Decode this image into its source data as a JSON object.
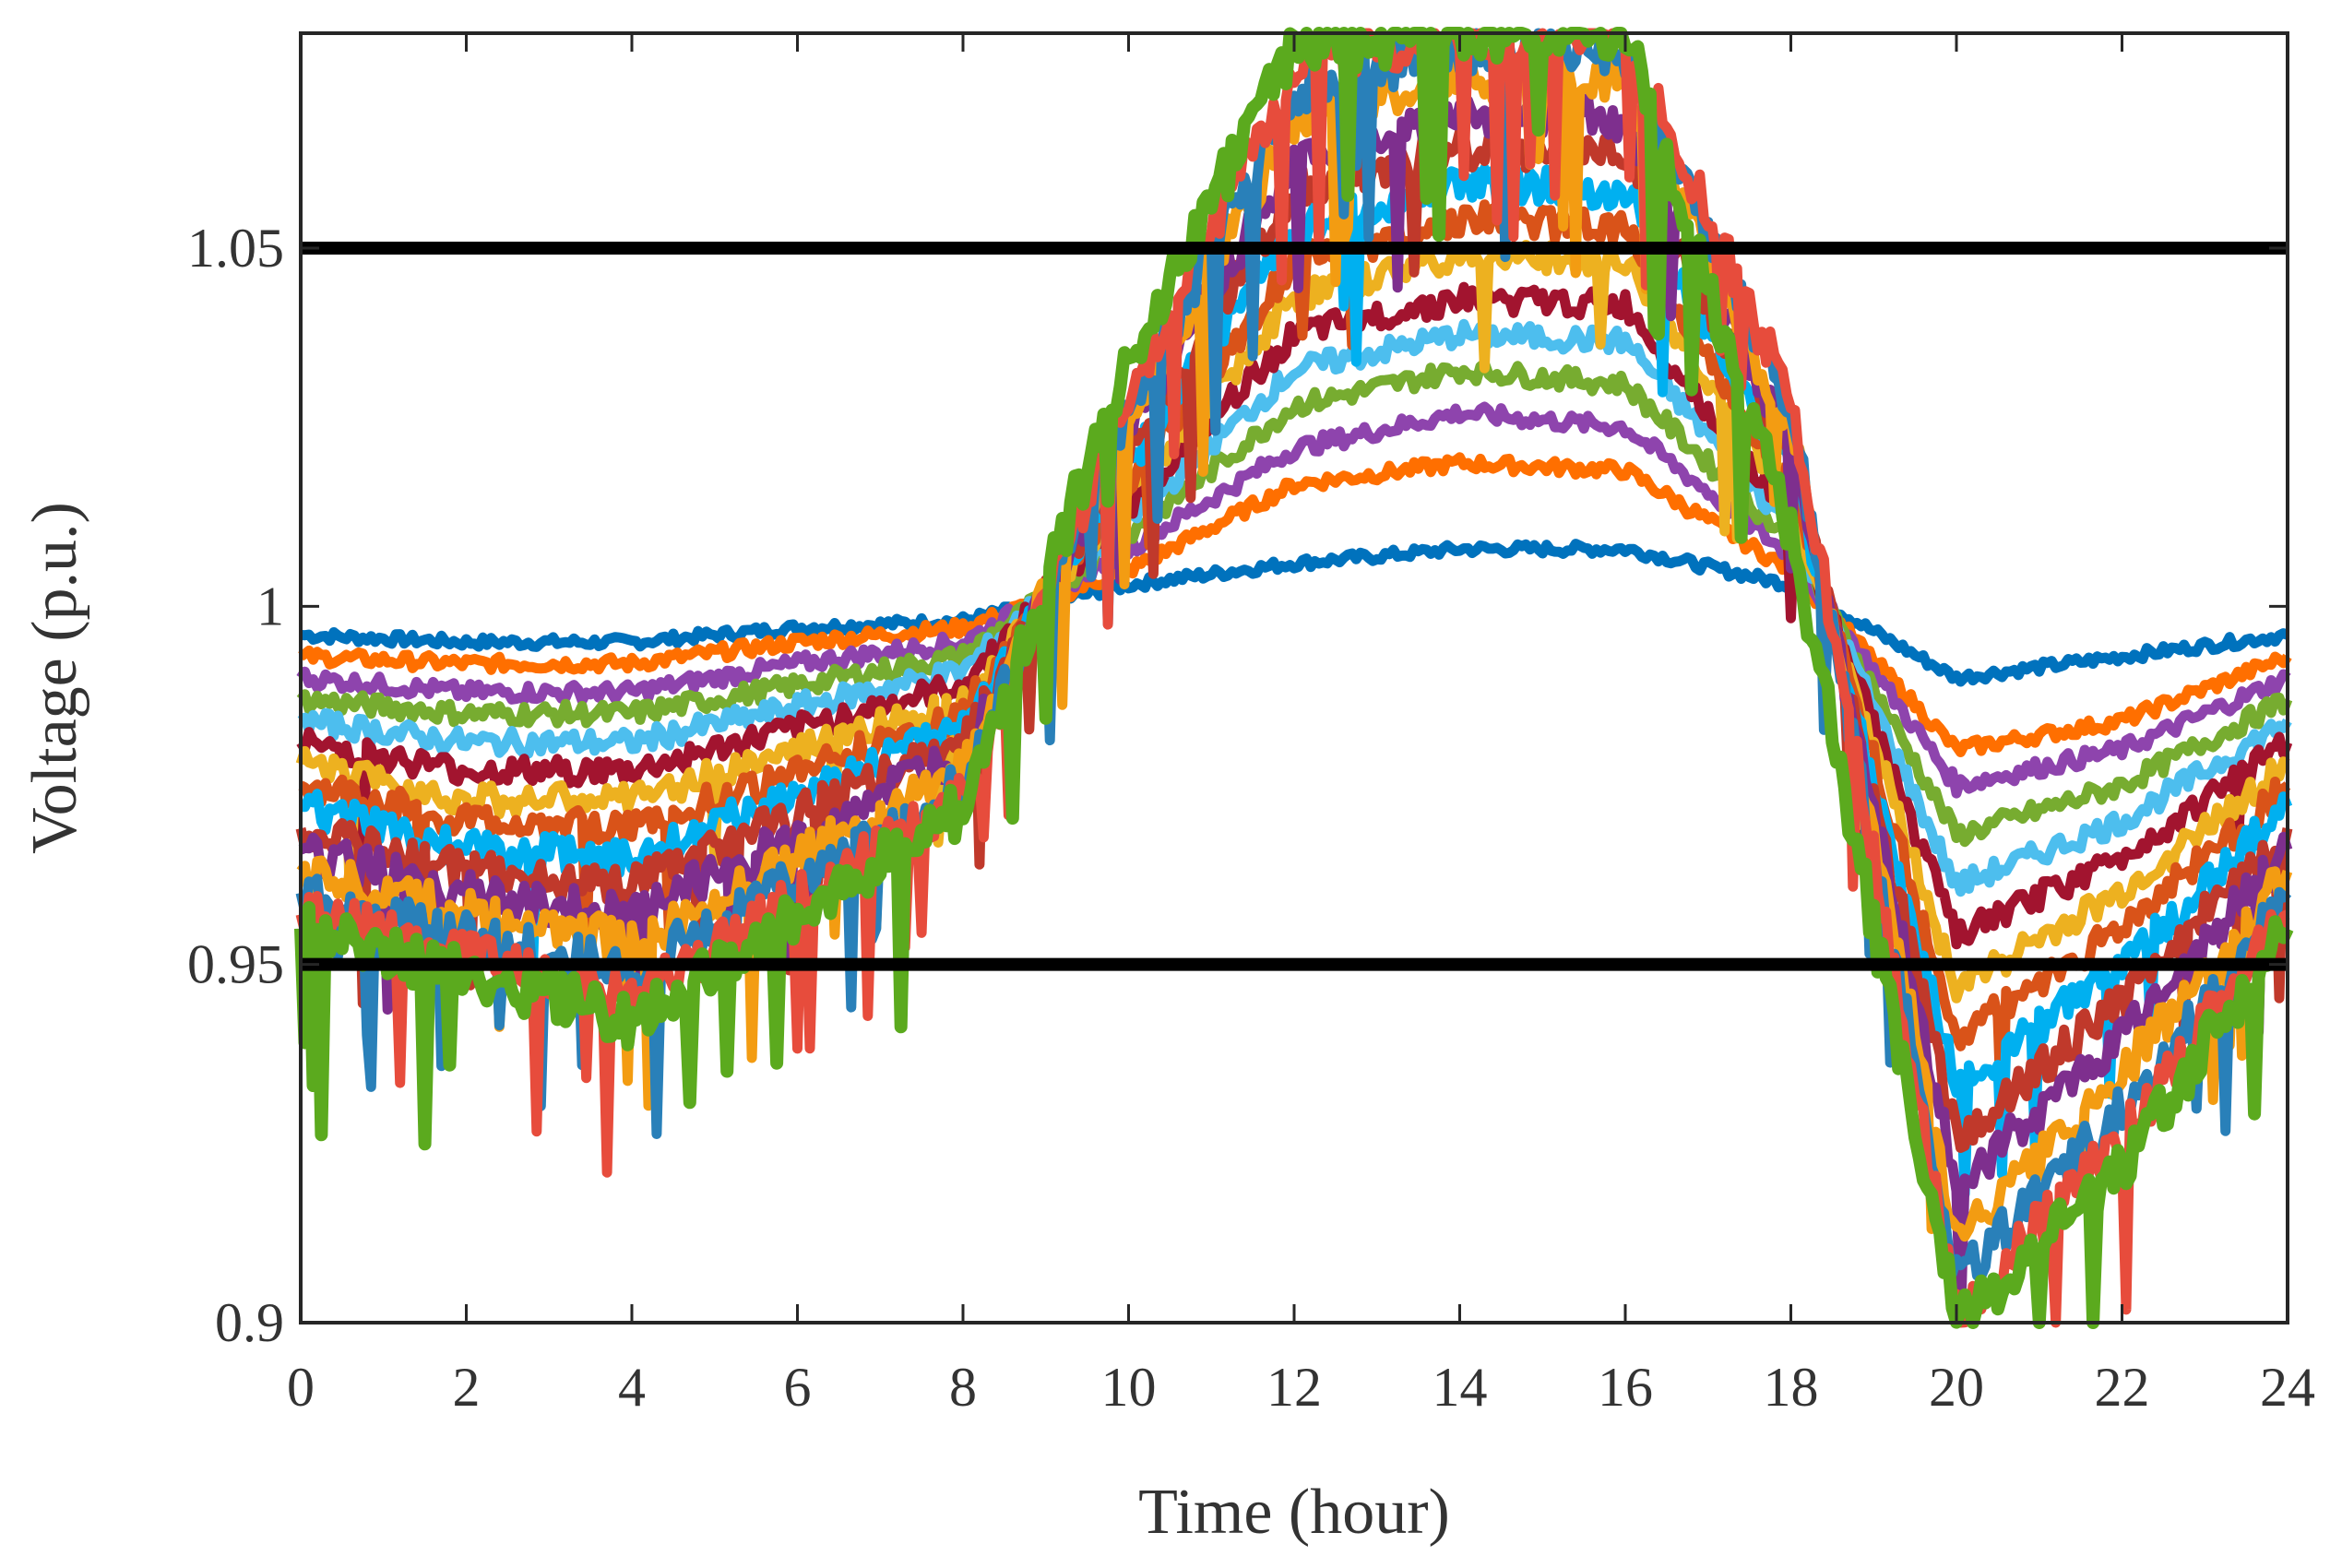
{
  "chart_data": {
    "type": "line",
    "title": "",
    "xlabel": "Time (hour)",
    "ylabel": "Voltage (p.u.)",
    "xlim": [
      0,
      24
    ],
    "ylim": [
      0.9,
      1.08
    ],
    "xticks": [
      0,
      2,
      4,
      6,
      8,
      10,
      12,
      14,
      16,
      18,
      20,
      22,
      24
    ],
    "yticks": [
      0.9,
      0.95,
      1,
      1.05
    ],
    "xtick_labels": [
      "0",
      "2",
      "4",
      "6",
      "8",
      "10",
      "12",
      "14",
      "16",
      "18",
      "20",
      "22",
      "24"
    ],
    "ytick_labels": [
      "0.9",
      "0.95",
      "1",
      "1.05"
    ],
    "grid": false,
    "legend": "none",
    "limit_lines": [
      {
        "y": 1.05,
        "color": "#000000"
      },
      {
        "y": 0.95,
        "color": "#000000"
      }
    ],
    "series_colors": [
      "#0072BD",
      "#D95319",
      "#EDB120",
      "#7E2F8E",
      "#77AC30",
      "#4DBEEE",
      "#A2142F",
      "#0072BD",
      "#FF6F00",
      "#00B0F0",
      "#8E44AD",
      "#C0392B",
      "#F39C12",
      "#2980B9",
      "#16A085",
      "#E74C3C"
    ],
    "series_sampling": "2-hour points; each series starts and ends at these values",
    "series": [
      {
        "x": [
          0,
          2,
          4,
          6,
          8,
          10,
          12,
          14,
          16,
          18,
          20,
          22,
          24
        ],
        "values": [
          0.996,
          0.995,
          0.995,
          0.997,
          0.998,
          1.003,
          1.006,
          1.008,
          1.008,
          1.003,
          0.99,
          0.993,
          0.996
        ],
        "color": "#0072BD"
      },
      {
        "x": [
          0,
          2,
          4,
          6,
          8,
          10,
          12,
          14,
          16,
          18,
          20,
          22,
          24
        ],
        "values": [
          0.993,
          0.992,
          0.992,
          0.995,
          0.997,
          1.005,
          1.017,
          1.02,
          1.019,
          1.005,
          0.98,
          0.984,
          0.993
        ],
        "color": "#FF6F00"
      },
      {
        "x": [
          0,
          2,
          4,
          6,
          8,
          10,
          12,
          14,
          16,
          18,
          20,
          22,
          24
        ],
        "values": [
          0.99,
          0.988,
          0.988,
          0.992,
          0.995,
          1.008,
          1.022,
          1.027,
          1.025,
          1.007,
          0.975,
          0.98,
          0.99
        ],
        "color": "#8E44AD"
      },
      {
        "x": [
          0,
          2,
          4,
          6,
          8,
          10,
          12,
          14,
          16,
          18,
          20,
          22,
          24
        ],
        "values": [
          0.987,
          0.985,
          0.985,
          0.989,
          0.993,
          1.01,
          1.028,
          1.033,
          1.031,
          1.009,
          0.968,
          0.975,
          0.987
        ],
        "color": "#77AC30"
      },
      {
        "x": [
          0,
          2,
          4,
          6,
          8,
          10,
          12,
          14,
          16,
          18,
          20,
          22,
          24
        ],
        "values": [
          0.984,
          0.981,
          0.981,
          0.986,
          0.991,
          1.012,
          1.033,
          1.038,
          1.037,
          1.011,
          0.961,
          0.97,
          0.984
        ],
        "color": "#4DBEEE"
      },
      {
        "x": [
          0,
          2,
          4,
          6,
          8,
          10,
          12,
          14,
          16,
          18,
          20,
          22,
          24
        ],
        "values": [
          0.981,
          0.977,
          0.977,
          0.983,
          0.989,
          1.014,
          1.038,
          1.043,
          1.042,
          1.013,
          0.954,
          0.965,
          0.981
        ],
        "color": "#A2142F"
      },
      {
        "x": [
          0,
          2,
          4,
          6,
          8,
          10,
          12,
          14,
          16,
          18,
          20,
          22,
          24
        ],
        "values": [
          0.978,
          0.973,
          0.973,
          0.98,
          0.987,
          1.016,
          1.043,
          1.049,
          1.048,
          1.015,
          0.947,
          0.96,
          0.978
        ],
        "color": "#EDB120"
      },
      {
        "x": [
          0,
          2,
          4,
          6,
          8,
          10,
          12,
          14,
          16,
          18,
          20,
          22,
          24
        ],
        "values": [
          0.975,
          0.97,
          0.969,
          0.977,
          0.985,
          1.018,
          1.048,
          1.054,
          1.053,
          1.017,
          0.94,
          0.955,
          0.975
        ],
        "color": "#D95319"
      },
      {
        "x": [
          0,
          2,
          4,
          6,
          8,
          10,
          12,
          14,
          16,
          18,
          20,
          22,
          24
        ],
        "values": [
          0.972,
          0.966,
          0.965,
          0.974,
          0.983,
          1.02,
          1.053,
          1.059,
          1.058,
          1.019,
          0.933,
          0.95,
          0.972
        ],
        "color": "#00B0F0"
      },
      {
        "x": [
          0,
          2,
          4,
          6,
          8,
          10,
          12,
          14,
          16,
          18,
          20,
          22,
          24
        ],
        "values": [
          0.969,
          0.963,
          0.961,
          0.971,
          0.981,
          1.022,
          1.058,
          1.064,
          1.063,
          1.021,
          0.926,
          0.945,
          0.969
        ],
        "color": "#C0392B"
      },
      {
        "x": [
          0,
          2,
          4,
          6,
          8,
          10,
          12,
          14,
          16,
          18,
          20,
          22,
          24
        ],
        "values": [
          0.966,
          0.96,
          0.957,
          0.968,
          0.979,
          1.024,
          1.063,
          1.069,
          1.068,
          1.023,
          0.919,
          0.94,
          0.966
        ],
        "color": "#7E2F8E"
      },
      {
        "x": [
          0,
          2,
          4,
          6,
          8,
          10,
          12,
          14,
          16,
          18,
          20,
          22,
          24
        ],
        "values": [
          0.963,
          0.957,
          0.953,
          0.965,
          0.977,
          1.026,
          1.068,
          1.074,
          1.073,
          1.025,
          0.912,
          0.935,
          0.963
        ],
        "color": "#F39C12"
      },
      {
        "x": [
          0,
          2,
          4,
          6,
          8,
          10,
          12,
          14,
          16,
          18,
          20,
          22,
          24
        ],
        "values": [
          0.96,
          0.954,
          0.949,
          0.962,
          0.975,
          1.028,
          1.072,
          1.078,
          1.077,
          1.027,
          0.906,
          0.93,
          0.96
        ],
        "color": "#2980B9"
      },
      {
        "x": [
          0,
          2,
          4,
          6,
          8,
          10,
          12,
          14,
          16,
          18,
          20,
          22,
          24
        ],
        "values": [
          0.957,
          0.951,
          0.945,
          0.959,
          0.973,
          1.03,
          1.076,
          1.08,
          1.08,
          1.029,
          0.901,
          0.926,
          0.957
        ],
        "color": "#E74C3C"
      },
      {
        "x": [
          0,
          2,
          4,
          6,
          8,
          10,
          12,
          14,
          16,
          18,
          20,
          22,
          24
        ],
        "values": [
          0.955,
          0.949,
          0.942,
          0.957,
          0.972,
          1.035,
          1.078,
          1.08,
          1.08,
          1.01,
          0.9,
          0.922,
          0.955
        ],
        "color": "#5BAA1E"
      }
    ]
  }
}
